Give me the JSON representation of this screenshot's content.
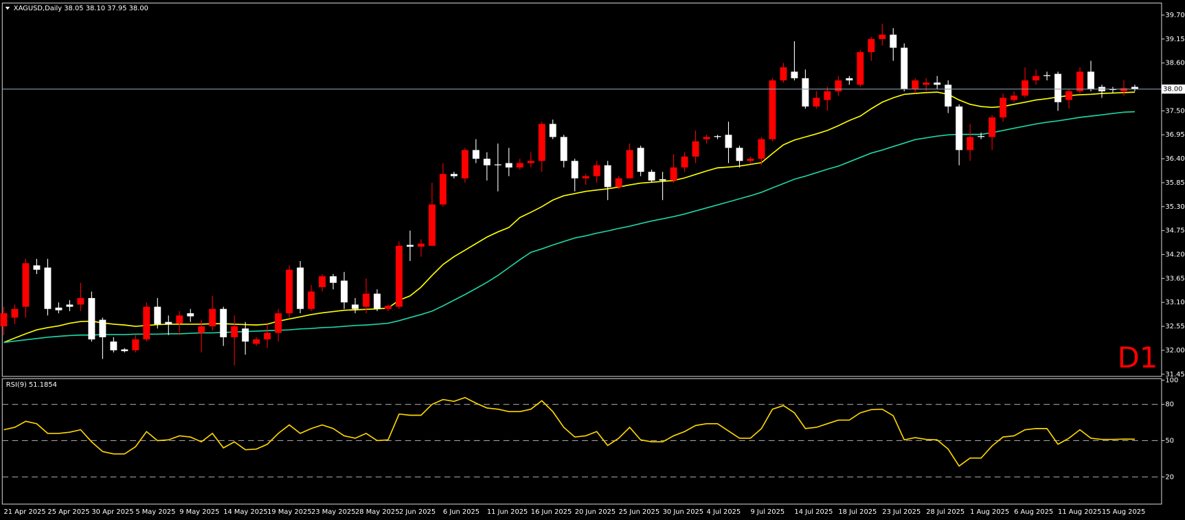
{
  "chart_data": [
    {
      "type": "candlestick",
      "title": "XAGUSD,Daily  38.05 38.10 37.95 38.00",
      "timeframe_label": "D1",
      "up_color": "#ff0000",
      "down_color": "#ffffff",
      "open": [
        32.55,
        32.75,
        33.0,
        33.95,
        33.9,
        32.98,
        33.05,
        33.05,
        33.2,
        32.7,
        32.2,
        32.02,
        32.0,
        32.25,
        33.0,
        32.65,
        32.62,
        32.85,
        32.4,
        32.55,
        32.95,
        32.3,
        32.5,
        32.15,
        32.25,
        32.4,
        32.85,
        33.9,
        32.95,
        33.45,
        33.7,
        33.6,
        33.05,
        33.0,
        33.3,
        32.95,
        33.0,
        34.42,
        34.38,
        34.4,
        35.35,
        36.05,
        35.95,
        36.6,
        36.4,
        36.27,
        36.3,
        36.2,
        36.3,
        36.35,
        37.2,
        36.9,
        36.35,
        35.95,
        36.0,
        36.25,
        35.75,
        35.95,
        36.65,
        36.1,
        35.93,
        35.9,
        36.2,
        36.45,
        36.85,
        36.92,
        36.95,
        36.65,
        36.35,
        36.4,
        36.85,
        38.2,
        38.4,
        38.25,
        37.6,
        37.75,
        37.95,
        38.25,
        38.1,
        38.85,
        39.15,
        39.25,
        38.95,
        38.0,
        38.1,
        38.15,
        38.1,
        37.6,
        36.6,
        36.92,
        36.9,
        37.35,
        37.75,
        37.85,
        38.2,
        38.32,
        38.35,
        37.75,
        37.95,
        38.4,
        38.05,
        38.0,
        37.95,
        38.05
      ],
      "high": [
        33.0,
        33.05,
        34.1,
        34.1,
        34.1,
        33.1,
        33.15,
        33.55,
        33.35,
        32.75,
        32.3,
        32.05,
        32.35,
        33.1,
        33.2,
        32.8,
        32.9,
        32.95,
        32.7,
        33.25,
        33.0,
        32.8,
        32.65,
        32.3,
        32.6,
        32.95,
        33.95,
        34.05,
        33.5,
        33.75,
        33.75,
        33.8,
        33.2,
        33.65,
        33.4,
        33.05,
        34.5,
        34.75,
        34.55,
        35.85,
        36.3,
        36.1,
        36.65,
        36.85,
        36.55,
        36.75,
        36.65,
        36.4,
        36.55,
        37.25,
        37.3,
        36.95,
        36.4,
        36.05,
        36.35,
        36.35,
        36.0,
        36.75,
        36.7,
        36.15,
        36.1,
        36.5,
        36.55,
        37.05,
        36.95,
        36.95,
        37.25,
        36.7,
        36.45,
        36.9,
        38.25,
        38.6,
        39.1,
        38.45,
        37.95,
        38.05,
        38.3,
        38.3,
        38.9,
        39.2,
        39.5,
        39.4,
        39.05,
        38.25,
        38.25,
        38.3,
        38.2,
        37.65,
        37.2,
        37.0,
        37.4,
        37.9,
        37.95,
        38.5,
        38.45,
        38.4,
        38.4,
        38.0,
        38.5,
        38.65,
        38.1,
        38.05,
        38.2,
        38.1
      ],
      "low": [
        32.35,
        32.6,
        32.75,
        33.75,
        32.8,
        32.85,
        32.9,
        32.9,
        32.2,
        31.8,
        31.95,
        31.95,
        31.95,
        32.2,
        32.5,
        32.35,
        32.35,
        32.65,
        31.95,
        32.45,
        32.1,
        31.65,
        31.9,
        32.1,
        32.05,
        32.2,
        32.75,
        32.85,
        32.9,
        33.35,
        33.4,
        32.95,
        32.85,
        32.85,
        32.9,
        32.9,
        32.95,
        34.05,
        34.15,
        34.4,
        35.3,
        35.95,
        35.85,
        36.3,
        35.9,
        35.65,
        36.0,
        36.15,
        36.2,
        36.1,
        36.85,
        36.2,
        35.65,
        35.8,
        35.85,
        35.45,
        35.7,
        35.95,
        36.0,
        35.85,
        35.45,
        35.85,
        36.1,
        36.3,
        36.75,
        36.85,
        36.3,
        36.2,
        36.3,
        36.25,
        36.8,
        38.15,
        38.2,
        37.55,
        37.55,
        37.5,
        37.85,
        38.1,
        38.05,
        38.65,
        39.0,
        38.65,
        37.95,
        37.9,
        37.95,
        38.0,
        37.45,
        36.25,
        36.35,
        36.85,
        36.6,
        37.25,
        37.7,
        37.8,
        38.1,
        38.2,
        37.5,
        37.55,
        37.9,
        37.95,
        37.8,
        37.9,
        37.85,
        37.95
      ],
      "close": [
        32.85,
        32.95,
        34.0,
        33.85,
        32.95,
        32.92,
        33.0,
        33.2,
        32.25,
        32.3,
        32.0,
        31.98,
        32.25,
        33.0,
        32.6,
        32.6,
        32.8,
        32.78,
        32.55,
        32.95,
        32.3,
        32.55,
        32.2,
        32.25,
        32.4,
        32.85,
        33.85,
        32.95,
        33.35,
        33.7,
        33.55,
        33.1,
        32.95,
        33.3,
        32.95,
        33.02,
        34.4,
        34.38,
        34.45,
        35.35,
        36.05,
        36.0,
        36.6,
        36.4,
        36.25,
        36.25,
        36.2,
        36.3,
        36.35,
        37.2,
        36.9,
        36.35,
        35.95,
        36.0,
        36.25,
        35.75,
        35.95,
        36.6,
        36.1,
        35.9,
        35.9,
        36.2,
        36.45,
        36.8,
        36.9,
        36.9,
        36.65,
        36.35,
        36.4,
        36.85,
        38.2,
        38.5,
        38.25,
        37.6,
        37.8,
        37.95,
        38.2,
        38.2,
        38.85,
        39.15,
        39.25,
        38.95,
        38.0,
        38.2,
        38.15,
        38.1,
        37.6,
        36.6,
        36.9,
        36.9,
        37.35,
        37.8,
        37.85,
        38.2,
        38.3,
        38.3,
        37.7,
        37.95,
        38.4,
        38.0,
        37.95,
        37.98,
        38.02,
        38.0
      ],
      "overlays": [
        {
          "color": "#ffff00",
          "values": [
            32.18,
            32.28,
            32.38,
            32.47,
            32.52,
            32.56,
            32.62,
            32.66,
            32.67,
            32.63,
            32.6,
            32.58,
            32.55,
            32.57,
            32.59,
            32.6,
            32.6,
            32.6,
            32.6,
            32.61,
            32.61,
            32.6,
            32.59,
            32.58,
            32.6,
            32.67,
            32.72,
            32.77,
            32.82,
            32.86,
            32.89,
            32.92,
            32.93,
            32.94,
            32.95,
            32.97,
            33.15,
            33.25,
            33.45,
            33.72,
            33.97,
            34.15,
            34.3,
            34.45,
            34.6,
            34.72,
            34.82,
            35.05,
            35.17,
            35.3,
            35.45,
            35.55,
            35.6,
            35.65,
            35.68,
            35.71,
            35.75,
            35.8,
            35.84,
            35.86,
            35.88,
            35.9,
            35.96,
            36.04,
            36.12,
            36.19,
            36.21,
            36.23,
            36.27,
            36.31,
            36.52,
            36.72,
            36.83,
            36.9,
            36.97,
            37.05,
            37.16,
            37.28,
            37.38,
            37.55,
            37.7,
            37.8,
            37.88,
            37.9,
            37.92,
            37.93,
            37.88,
            37.75,
            37.65,
            37.6,
            37.58,
            37.6,
            37.65,
            37.7,
            37.75,
            37.78,
            37.82,
            37.85,
            37.87,
            37.88,
            37.9,
            37.91,
            37.92,
            37.93
          ]
        },
        {
          "color": "#1fd4a4",
          "values": [
            32.18,
            32.21,
            32.24,
            32.27,
            32.3,
            32.32,
            32.34,
            32.35,
            32.35,
            32.36,
            32.36,
            32.36,
            32.37,
            32.37,
            32.37,
            32.38,
            32.38,
            32.39,
            32.4,
            32.4,
            32.41,
            32.42,
            32.43,
            32.44,
            32.45,
            32.46,
            32.47,
            32.49,
            32.5,
            32.52,
            32.53,
            32.55,
            32.57,
            32.58,
            32.6,
            32.62,
            32.68,
            32.75,
            32.82,
            32.9,
            33.02,
            33.15,
            33.28,
            33.42,
            33.56,
            33.72,
            33.9,
            34.08,
            34.25,
            34.33,
            34.42,
            34.5,
            34.58,
            34.63,
            34.69,
            34.74,
            34.8,
            34.85,
            34.91,
            34.97,
            35.02,
            35.07,
            35.13,
            35.2,
            35.27,
            35.34,
            35.41,
            35.48,
            35.55,
            35.63,
            35.73,
            35.83,
            35.93,
            36.0,
            36.08,
            36.16,
            36.23,
            36.33,
            36.43,
            36.53,
            36.6,
            36.68,
            36.76,
            36.84,
            36.88,
            36.92,
            36.95,
            36.96,
            36.96,
            36.96,
            37.0,
            37.05,
            37.1,
            37.15,
            37.2,
            37.24,
            37.27,
            37.31,
            37.35,
            37.38,
            37.41,
            37.44,
            37.47,
            37.48
          ]
        }
      ],
      "current_price": {
        "value": 38.0,
        "label": "38.00"
      },
      "ylim": [
        31.4,
        39.96
      ],
      "yticks": [
        {
          "value": 39.7,
          "label": "39.70"
        },
        {
          "value": 39.15,
          "label": "39.15"
        },
        {
          "value": 38.6,
          "label": "38.60"
        },
        {
          "value": 37.5,
          "label": "37.50"
        },
        {
          "value": 36.95,
          "label": "36.95"
        },
        {
          "value": 36.4,
          "label": "36.40"
        },
        {
          "value": 35.85,
          "label": "35.85"
        },
        {
          "value": 35.3,
          "label": "35.30"
        },
        {
          "value": 34.75,
          "label": "34.75"
        },
        {
          "value": 34.2,
          "label": "34.20"
        },
        {
          "value": 33.65,
          "label": "33.65"
        },
        {
          "value": 33.1,
          "label": "33.10"
        },
        {
          "value": 32.55,
          "label": "32.55"
        },
        {
          "value": 32.0,
          "label": "32.00"
        },
        {
          "value": 31.45,
          "label": "31.45"
        }
      ],
      "grid": false
    },
    {
      "type": "line",
      "title": "RSI(9) 51.1854",
      "categories": [
        "21 Apr 2025",
        null,
        null,
        null,
        "25 Apr 2025",
        null,
        null,
        null,
        "30 Apr 2025",
        null,
        null,
        null,
        "5 May 2025",
        null,
        null,
        null,
        "9 May 2025",
        null,
        null,
        null,
        "14 May 2025",
        null,
        null,
        null,
        "19 May 2025",
        null,
        null,
        null,
        "23 May 2025",
        null,
        null,
        null,
        "28 May 2025",
        null,
        null,
        null,
        "2 Jun 2025",
        null,
        null,
        null,
        "6 Jun 2025",
        null,
        null,
        null,
        "11 Jun 2025",
        null,
        null,
        null,
        "16 Jun 2025",
        null,
        null,
        null,
        "20 Jun 2025",
        null,
        null,
        null,
        "25 Jun 2025",
        null,
        null,
        null,
        "30 Jun 2025",
        null,
        null,
        null,
        "4 Jul 2025",
        null,
        null,
        null,
        "9 Jul 2025",
        null,
        null,
        null,
        "14 Jul 2025",
        null,
        null,
        null,
        "18 Jul 2025",
        null,
        null,
        null,
        "23 Jul 2025",
        null,
        null,
        null,
        "28 Jul 2025",
        null,
        null,
        null,
        "1 Aug 2025",
        null,
        null,
        null,
        "6 Aug 2025",
        null,
        null,
        null,
        "11 Aug 2025",
        null,
        null,
        null,
        "15 Aug 2025",
        null,
        null,
        null
      ],
      "color": "#ffd700",
      "values": [
        59,
        61,
        66,
        64,
        56,
        56,
        57,
        59,
        49,
        41,
        39,
        39,
        45,
        57.5,
        50,
        50.6,
        54,
        53,
        49,
        56,
        44,
        49,
        42.5,
        43,
        47,
        56,
        63,
        56,
        60,
        63,
        60,
        54,
        52,
        56,
        50,
        50.6,
        72,
        71,
        71,
        80,
        84,
        82.5,
        85.6,
        81,
        77,
        76,
        74,
        74,
        76,
        83,
        74,
        61,
        53,
        54,
        57.5,
        46,
        52,
        61,
        50.6,
        49,
        49,
        54,
        57.5,
        62.5,
        64,
        64,
        58,
        52,
        52,
        60,
        76,
        79,
        73,
        60,
        61,
        64,
        67,
        67,
        73,
        75.6,
        76,
        70.6,
        50.6,
        52.5,
        51,
        50.6,
        43,
        29,
        35.6,
        35.6,
        45.6,
        53,
        54,
        59,
        60,
        60,
        47,
        52,
        59,
        52,
        51,
        51,
        51.3,
        51.19
      ],
      "levels": [
        80,
        50,
        20
      ],
      "ylim": [
        0,
        100
      ],
      "yticks": [
        100,
        80,
        50,
        20
      ],
      "grid": false
    }
  ]
}
